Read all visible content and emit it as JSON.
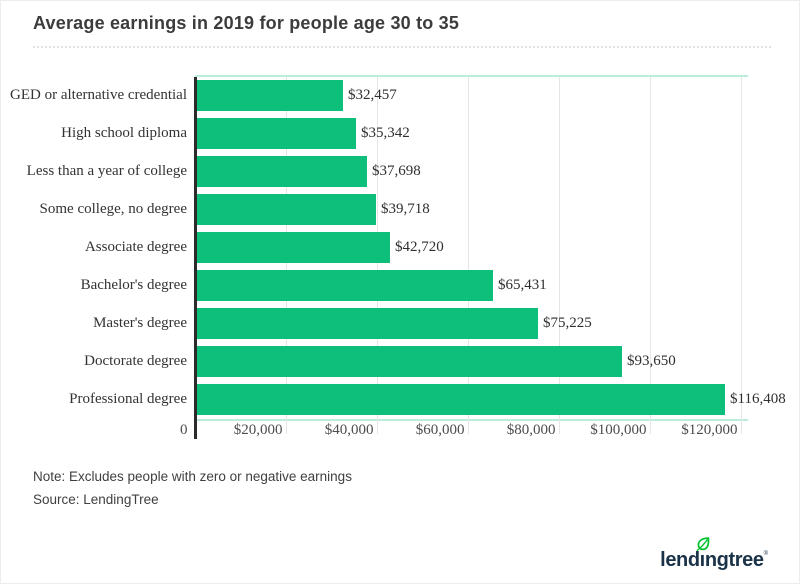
{
  "header": {
    "title": "Average earnings in 2019 for people age 30 to 35"
  },
  "chart_data": {
    "type": "bar",
    "orientation": "horizontal",
    "title": "Average earnings in 2019 for people age 30 to 35",
    "categories": [
      "GED or alternative credential",
      "High school diploma",
      "Less than a year of college",
      "Some college, no degree",
      "Associate degree",
      "Bachelor's degree",
      "Master's degree",
      "Doctorate degree",
      "Professional degree"
    ],
    "values": [
      32457,
      35342,
      37698,
      39718,
      42720,
      65431,
      75225,
      93650,
      116408
    ],
    "value_labels": [
      "$32,457",
      "$35,342",
      "$37,698",
      "$39,718",
      "$42,720",
      "$65,431",
      "$75,225",
      "$93,650",
      "$116,408"
    ],
    "x_ticks": [
      {
        "value": 0,
        "label": "0"
      },
      {
        "value": 20000,
        "label": "$20,000"
      },
      {
        "value": 40000,
        "label": "$40,000"
      },
      {
        "value": 60000,
        "label": "$60,000"
      },
      {
        "value": 80000,
        "label": "$80,000"
      },
      {
        "value": 100000,
        "label": "$100,000"
      },
      {
        "value": 120000,
        "label": "$120,000"
      }
    ],
    "xlim": [
      0,
      121500
    ],
    "grid": true,
    "legend": false,
    "bar_color": "#0EBE7B",
    "plot_border_color": "#BCEDD8",
    "grid_color": "#E6E6E6",
    "axis_color": "#2B2B2B"
  },
  "footer": {
    "note": "Note: Excludes people with zero or negative earnings",
    "source": "Source: LendingTree"
  },
  "logo": {
    "name": "lendingtree",
    "part_lend": "lend",
    "part_i": "ı",
    "part_ngtree": "ngtree",
    "mark": "®",
    "text_color": "#1A3348",
    "leaf_color": "#00C230"
  }
}
